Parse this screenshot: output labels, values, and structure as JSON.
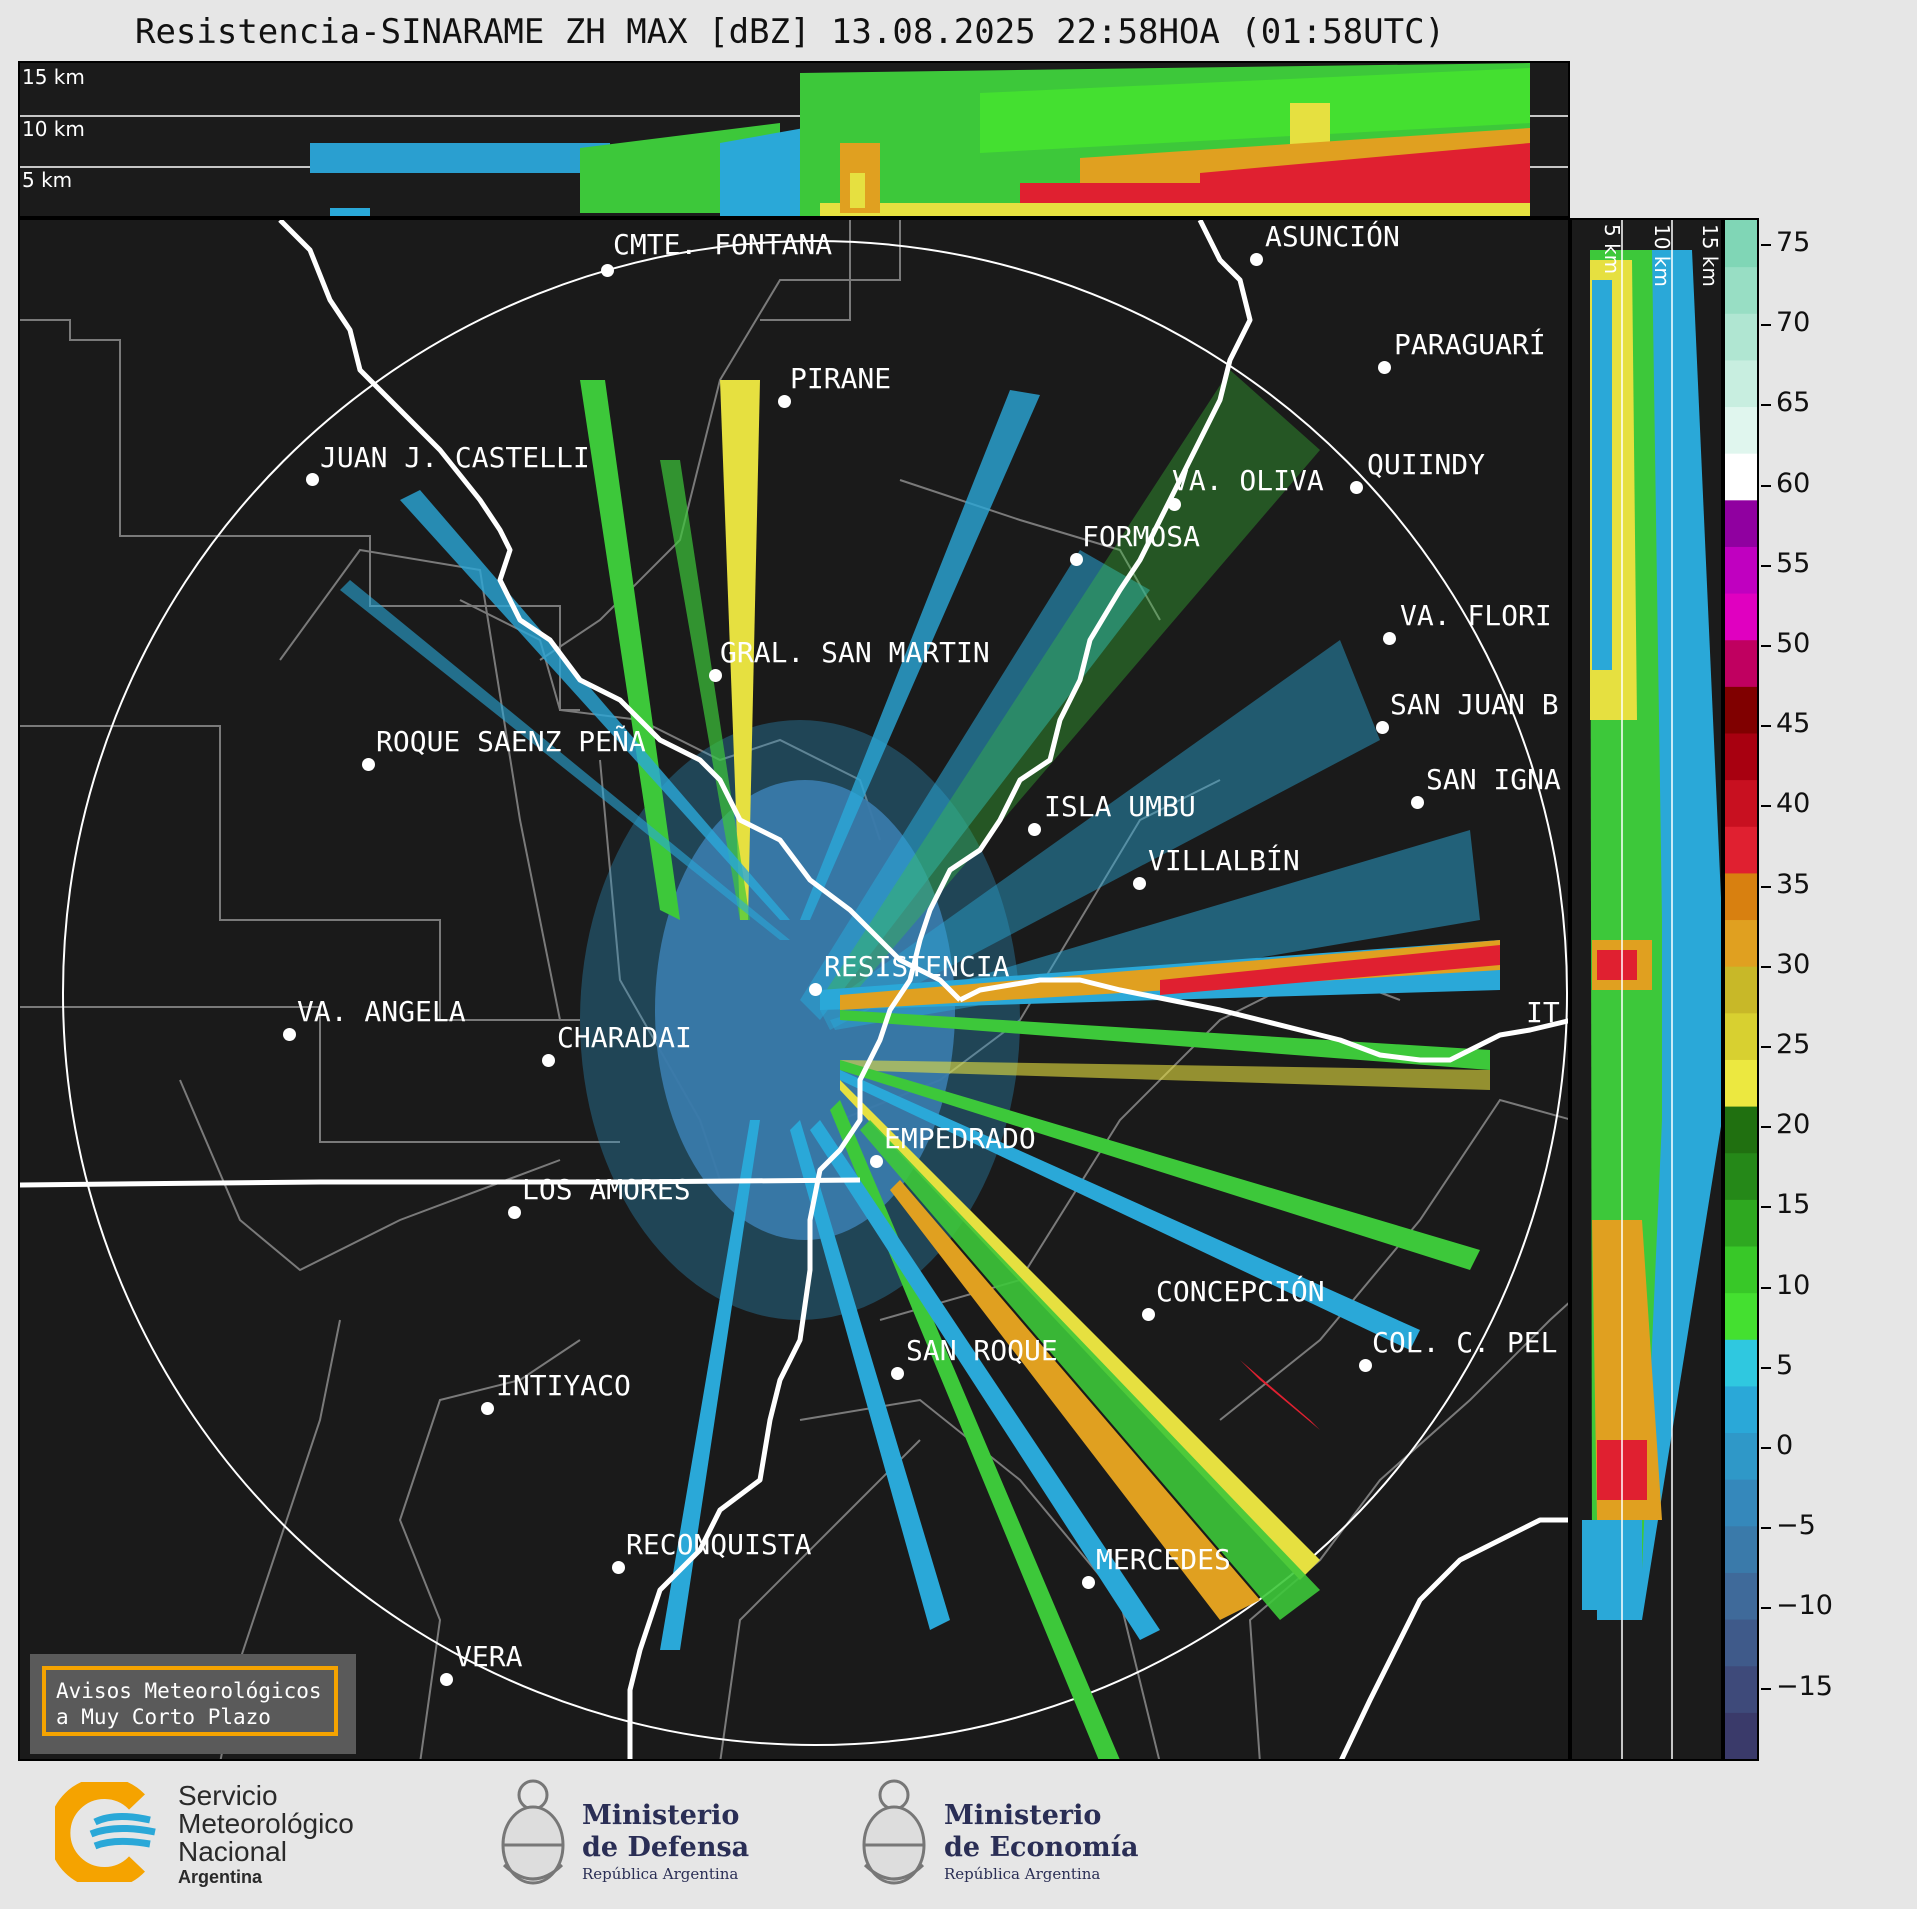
{
  "title": "Resistencia-SINARAME ZH MAX [dBZ] 13.08.2025 22:58HOA (01:58UTC)",
  "height_labels": [
    "15 km",
    "10 km",
    "5 km"
  ],
  "colorbar": {
    "unit": "dBZ",
    "ticks": [
      "75",
      "70",
      "65",
      "60",
      "55",
      "50",
      "45",
      "40",
      "35",
      "30",
      "25",
      "20",
      "15",
      "10",
      "5",
      "0",
      "−5",
      "−10",
      "−15"
    ],
    "colors": [
      "#3a3a6a",
      "#3e4a7a",
      "#3f5a8a",
      "#3f6a9a",
      "#3a7aaa",
      "#3588bb",
      "#2f98c8",
      "#2aa8d8",
      "#2fc8e0",
      "#44e030",
      "#38c828",
      "#2ea820",
      "#258818",
      "#207010",
      "#ece840",
      "#d8d030",
      "#c8b828",
      "#e0a020",
      "#d88010",
      "#e02030",
      "#c81020",
      "#a80010",
      "#800000",
      "#c00060",
      "#e000c0",
      "#c000c0",
      "#9000a0",
      "#ffffff",
      "#e0f6ee",
      "#c8eee0",
      "#b0e6d2",
      "#98dec4",
      "#80d6b6"
    ]
  },
  "cities": [
    {
      "name": "CMTE. FONTANA"
    },
    {
      "name": "ASUNCIÓN"
    },
    {
      "name": "PARAGUARÍ"
    },
    {
      "name": "PIRANE"
    },
    {
      "name": "JUAN J. CASTELLI"
    },
    {
      "name": "VA. OLIVA"
    },
    {
      "name": "QUIINDY"
    },
    {
      "name": "FORMOSA"
    },
    {
      "name": "VA. FLORI"
    },
    {
      "name": "GRAL. SAN MARTIN"
    },
    {
      "name": "SAN JUAN B"
    },
    {
      "name": "ROQUE SAENZ PEÑA"
    },
    {
      "name": "SAN IGNA"
    },
    {
      "name": "ISLA UMBU"
    },
    {
      "name": "VILLALBÍN"
    },
    {
      "name": "RESISTENCIA"
    },
    {
      "name": "VA. ANGELA"
    },
    {
      "name": "CHARADAI"
    },
    {
      "name": "IT"
    },
    {
      "name": "EMPEDRADO"
    },
    {
      "name": "LOS AMORES"
    },
    {
      "name": "CONCEPCIÓN"
    },
    {
      "name": "SAN ROQUE"
    },
    {
      "name": "COL. C. PEL"
    },
    {
      "name": "INTIYACO"
    },
    {
      "name": "RECONQUISTA"
    },
    {
      "name": "MERCEDES"
    },
    {
      "name": "VERA"
    }
  ],
  "notice": {
    "line1": "Avisos Meteorológicos",
    "line2": "a Muy Corto Plazo"
  },
  "logos": {
    "smn": {
      "line1": "Servicio",
      "line2": "Meteorológico",
      "line3": "Nacional",
      "line4": "Argentina"
    },
    "defensa": {
      "line1": "Ministerio",
      "line2": "de Defensa",
      "line3": "República Argentina"
    },
    "economia": {
      "line1": "Ministerio",
      "line2": "de Economía",
      "line3": "República Argentina"
    }
  }
}
